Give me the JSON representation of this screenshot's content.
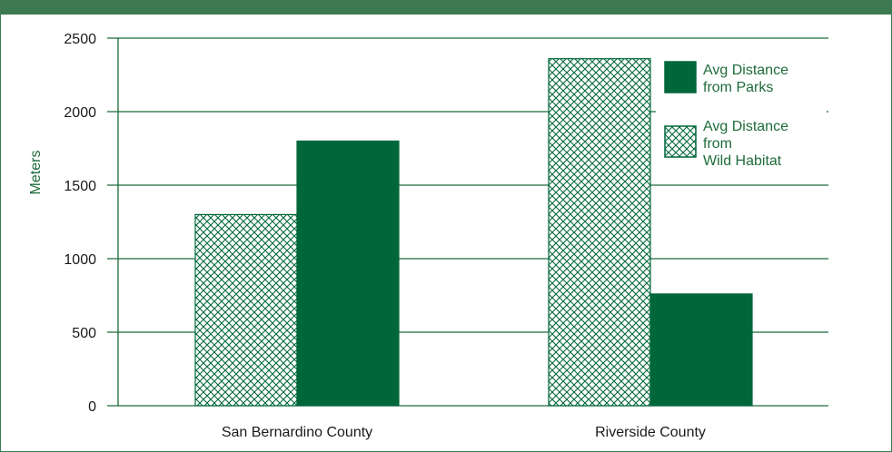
{
  "header": {
    "title": ""
  },
  "colors": {
    "accent": "#00673a",
    "frame": "#3d7a52",
    "grid": "#1d6b3a",
    "text": "#1a1a1a"
  },
  "chart_data": {
    "type": "bar",
    "categories": [
      "San Bernardino County",
      "Riverside County"
    ],
    "series": [
      {
        "name": [
          "Avg Distance",
          "from",
          "Wild Habitat"
        ],
        "pattern": "crosshatch",
        "values": [
          1300,
          2360
        ]
      },
      {
        "name": [
          "Avg Distance",
          "from Parks"
        ],
        "pattern": "solid",
        "values": [
          1800,
          760
        ]
      }
    ],
    "ylabel": "Meters",
    "ylim": [
      0,
      2500
    ],
    "yticks": [
      "0",
      "500",
      "1000",
      "1500",
      "2000",
      "2500"
    ],
    "grid": true,
    "legend_position": "top-right"
  }
}
